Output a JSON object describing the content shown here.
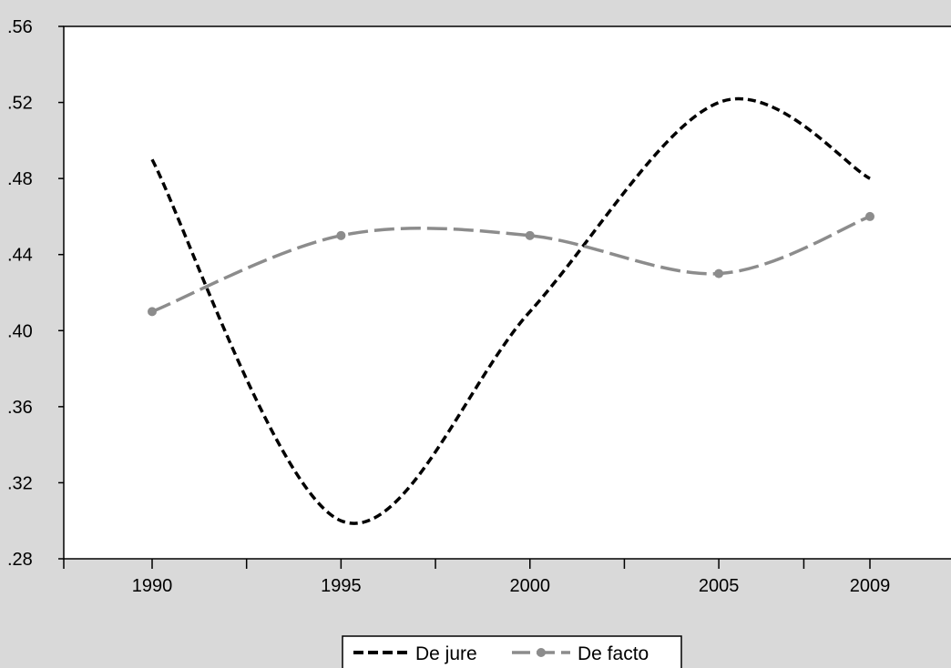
{
  "chart_data": {
    "type": "line",
    "title": "",
    "xlabel": "",
    "ylabel": "",
    "x": [
      1990,
      1995,
      2000,
      2005,
      2009
    ],
    "x_tick_labels": [
      "1990",
      "1995",
      "2000",
      "2005",
      "2009"
    ],
    "y_tick_labels": [
      ".28",
      ".32",
      ".36",
      ".40",
      ".44",
      ".48",
      ".52",
      ".56"
    ],
    "y_ticks": [
      0.28,
      0.32,
      0.36,
      0.4,
      0.44,
      0.48,
      0.52,
      0.56
    ],
    "ylim": [
      0.28,
      0.56
    ],
    "xlim": [
      1988,
      2010
    ],
    "grid": false,
    "legend_position": "bottom-center",
    "series": [
      {
        "name": "De jure",
        "values": [
          0.49,
          0.3,
          0.41,
          0.52,
          0.48
        ],
        "color": "#000000",
        "style": "dashed",
        "markers": false
      },
      {
        "name": "De facto",
        "values": [
          0.41,
          0.45,
          0.45,
          0.43,
          0.46
        ],
        "color": "#8c8c8c",
        "style": "long-dash",
        "markers": true
      }
    ]
  }
}
